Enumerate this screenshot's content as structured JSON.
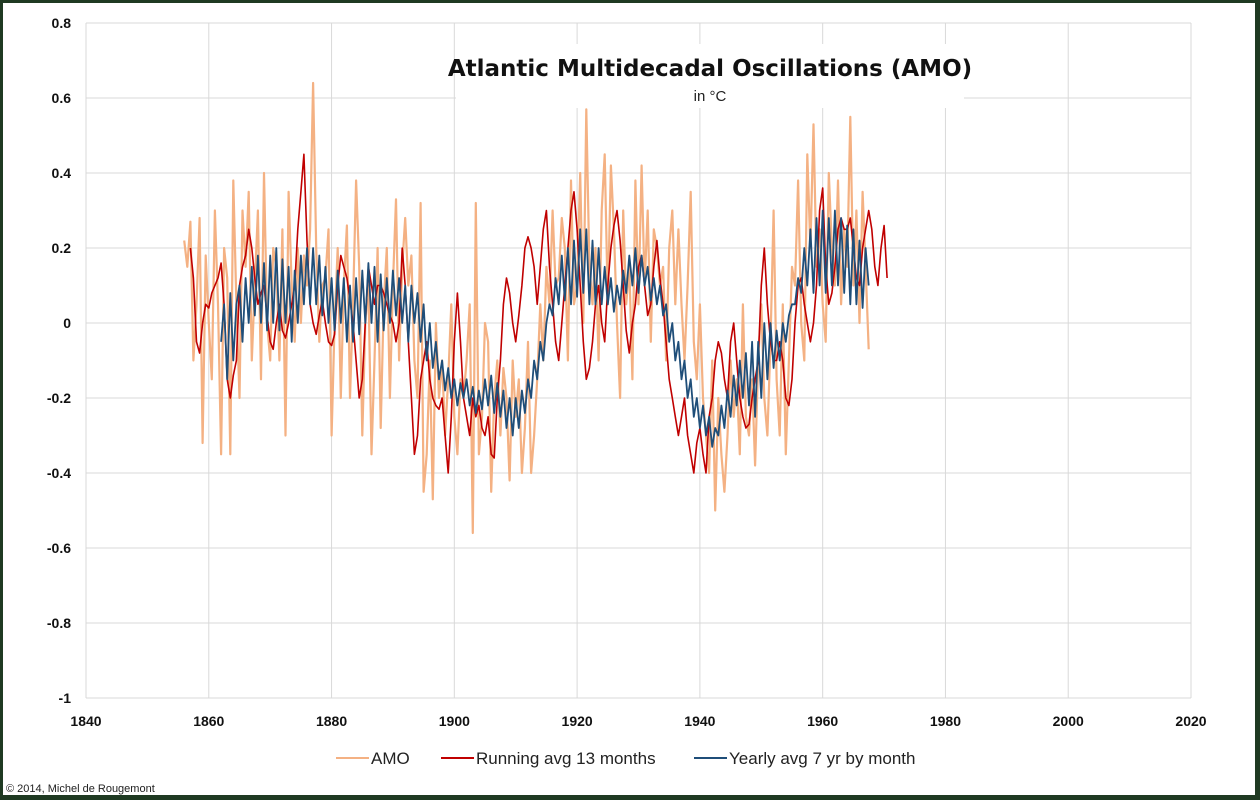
{
  "chart_data": {
    "type": "line",
    "title": "Atlantic Multidecadal Oscillations (AMO)",
    "subtitle": "in °C",
    "xlabel": "",
    "ylabel": "",
    "xlim": [
      1840,
      2020
    ],
    "ylim": [
      -1,
      0.8
    ],
    "x_ticks": [
      1840,
      1860,
      1880,
      1900,
      1920,
      1940,
      1960,
      1980,
      2000,
      2020
    ],
    "y_ticks": [
      0.8,
      0.6,
      0.4,
      0.2,
      0,
      -0.2,
      -0.4,
      -0.6,
      -0.8,
      -1
    ],
    "y_tick_labels": [
      "0.8",
      "0.6",
      "0.4",
      "0.2",
      "0",
      "-0.2",
      "-0.4",
      "-0.6",
      "-0.8",
      "-1"
    ],
    "grid": true,
    "legend_position": "bottom",
    "series": [
      {
        "name": "AMO",
        "color": "#f4b183",
        "x_start": 1856,
        "x_step": 0.5,
        "values": [
          0.22,
          0.15,
          0.27,
          -0.1,
          0.05,
          0.28,
          -0.32,
          0.18,
          0.0,
          -0.15,
          0.3,
          0.05,
          -0.35,
          0.2,
          0.12,
          -0.35,
          0.38,
          0.05,
          -0.2,
          0.3,
          0.15,
          0.35,
          -0.1,
          0.1,
          0.3,
          -0.15,
          0.4,
          0.0,
          -0.1,
          0.2,
          0.15,
          -0.1,
          0.25,
          -0.3,
          0.35,
          0.1,
          -0.05,
          0.2,
          0.0,
          0.18,
          0.1,
          0.25,
          0.64,
          0.2,
          -0.05,
          0.1,
          0.12,
          0.25,
          -0.3,
          0.0,
          0.2,
          -0.2,
          0.1,
          0.26,
          -0.2,
          0.05,
          0.38,
          0.15,
          -0.3,
          0.0,
          0.1,
          -0.35,
          -0.1,
          0.2,
          -0.28,
          0.05,
          0.2,
          -0.2,
          0.1,
          0.33,
          -0.1,
          0.15,
          0.28,
          0.1,
          0.18,
          -0.1,
          -0.2,
          0.32,
          -0.45,
          -0.35,
          -0.1,
          -0.47,
          0.0,
          -0.2,
          -0.1,
          -0.3,
          -0.15,
          0.05,
          -0.25,
          -0.35,
          -0.15,
          -0.2,
          -0.1,
          0.05,
          -0.56,
          0.32,
          -0.35,
          -0.25,
          0.0,
          -0.05,
          -0.45,
          -0.2,
          -0.1,
          -0.3,
          -0.12,
          -0.2,
          -0.42,
          -0.1,
          -0.25,
          -0.15,
          -0.4,
          -0.28,
          -0.05,
          -0.4,
          -0.3,
          -0.15,
          0.05,
          -0.1,
          0.15,
          0.05,
          0.3,
          0.1,
          0.12,
          0.28,
          0.2,
          -0.1,
          0.38,
          0.05,
          0.1,
          0.4,
          0.0,
          0.57,
          0.15,
          0.05,
          0.2,
          -0.1,
          0.3,
          0.45,
          0.05,
          0.42,
          0.25,
          0.0,
          -0.2,
          0.3,
          0.05,
          0.15,
          -0.15,
          0.38,
          0.05,
          0.42,
          0.1,
          0.3,
          -0.05,
          0.25,
          0.2,
          0.1,
          0.15,
          -0.1,
          0.2,
          0.3,
          0.05,
          0.25,
          0.05,
          -0.1,
          0.1,
          0.35,
          -0.05,
          -0.15,
          0.05,
          -0.2,
          -0.3,
          -0.4,
          -0.1,
          -0.5,
          -0.2,
          -0.35,
          -0.45,
          -0.3,
          -0.1,
          -0.25,
          -0.15,
          -0.35,
          0.05,
          -0.25,
          -0.3,
          -0.15,
          -0.38,
          -0.1,
          0.05,
          -0.2,
          -0.3,
          -0.05,
          0.3,
          -0.15,
          -0.3,
          0.05,
          -0.35,
          -0.1,
          0.15,
          0.1,
          0.38,
          0.0,
          -0.1,
          0.45,
          0.2,
          0.53,
          0.15,
          0.25,
          0.05,
          -0.05,
          0.4,
          0.2,
          0.1,
          0.38,
          0.05,
          0.25,
          0.15,
          0.55,
          0.1,
          0.3,
          0.0,
          0.35,
          0.15,
          -0.07
        ]
      },
      {
        "name": "Running avg 13 months",
        "color": "#c00000",
        "x_start": 1857,
        "x_step": 0.5,
        "values": [
          0.2,
          0.12,
          -0.05,
          -0.08,
          0.0,
          0.05,
          0.04,
          0.08,
          0.1,
          0.12,
          0.16,
          0.05,
          -0.15,
          -0.2,
          -0.14,
          -0.1,
          0.1,
          0.15,
          0.18,
          0.25,
          0.2,
          0.12,
          0.05,
          0.08,
          0.1,
          0.02,
          -0.05,
          -0.07,
          0.0,
          0.05,
          -0.02,
          -0.04,
          0.0,
          0.05,
          0.1,
          0.25,
          0.35,
          0.45,
          0.22,
          0.05,
          0.0,
          -0.03,
          0.02,
          0.06,
          0.0,
          -0.05,
          -0.06,
          -0.03,
          0.1,
          0.18,
          0.15,
          0.12,
          0.06,
          0.0,
          -0.1,
          -0.2,
          -0.15,
          0.0,
          0.15,
          0.1,
          0.05,
          0.1,
          0.1,
          0.08,
          0.05,
          0.02,
          0.0,
          -0.05,
          0.0,
          0.2,
          0.1,
          -0.05,
          -0.2,
          -0.35,
          -0.3,
          -0.15,
          -0.1,
          -0.05,
          -0.15,
          -0.2,
          -0.22,
          -0.23,
          -0.2,
          -0.3,
          -0.4,
          -0.25,
          -0.05,
          0.08,
          -0.05,
          -0.2,
          -0.25,
          -0.3,
          -0.2,
          -0.25,
          -0.22,
          -0.28,
          -0.3,
          -0.25,
          -0.35,
          -0.36,
          -0.2,
          -0.1,
          0.05,
          0.12,
          0.08,
          0.0,
          -0.05,
          0.02,
          0.1,
          0.2,
          0.23,
          0.2,
          0.15,
          0.05,
          0.15,
          0.25,
          0.3,
          0.15,
          0.05,
          -0.05,
          -0.1,
          0.0,
          0.1,
          0.2,
          0.3,
          0.35,
          0.25,
          0.1,
          -0.05,
          -0.15,
          -0.12,
          -0.05,
          0.05,
          0.1,
          0.0,
          -0.05,
          0.1,
          0.2,
          0.26,
          0.3,
          0.22,
          0.1,
          -0.02,
          -0.08,
          0.0,
          0.05,
          0.15,
          0.18,
          0.1,
          0.02,
          0.05,
          0.15,
          0.22,
          0.12,
          0.05,
          -0.05,
          -0.15,
          -0.2,
          -0.25,
          -0.3,
          -0.25,
          -0.2,
          -0.3,
          -0.35,
          -0.4,
          -0.32,
          -0.28,
          -0.35,
          -0.4,
          -0.25,
          -0.2,
          -0.1,
          -0.05,
          -0.08,
          -0.15,
          -0.2,
          -0.05,
          0.0,
          -0.1,
          -0.2,
          -0.25,
          -0.28,
          -0.27,
          -0.2,
          -0.15,
          -0.1,
          0.1,
          0.2,
          0.05,
          -0.05,
          -0.1,
          -0.1,
          -0.05,
          -0.1,
          -0.2,
          -0.22,
          -0.15,
          0.0,
          0.1,
          0.12,
          0.05,
          0.0,
          -0.05,
          0.0,
          0.1,
          0.3,
          0.36,
          0.15,
          0.05,
          0.08,
          0.15,
          0.25,
          0.28,
          0.25,
          0.25,
          0.28,
          0.2,
          0.12,
          0.1,
          0.2,
          0.25,
          0.3,
          0.25,
          0.15,
          0.1,
          0.2,
          0.26,
          0.12
        ]
      },
      {
        "name": "Yearly avg 7 yr by month",
        "color": "#1f4e79",
        "x_start": 1862,
        "x_step": 0.5,
        "values": [
          -0.05,
          0.05,
          -0.15,
          0.08,
          -0.1,
          0.05,
          0.1,
          -0.05,
          0.12,
          0.0,
          0.15,
          0.02,
          0.18,
          0.0,
          0.16,
          -0.02,
          0.18,
          0.0,
          0.2,
          -0.02,
          0.17,
          0.0,
          0.15,
          -0.05,
          0.14,
          0.0,
          0.18,
          0.05,
          0.2,
          0.05,
          0.2,
          0.05,
          0.18,
          0.02,
          0.15,
          0.0,
          0.12,
          -0.02,
          0.14,
          0.0,
          0.12,
          -0.05,
          0.1,
          -0.05,
          0.12,
          -0.03,
          0.14,
          0.0,
          0.16,
          0.0,
          0.15,
          -0.05,
          0.13,
          -0.02,
          0.12,
          0.0,
          0.14,
          0.02,
          0.12,
          0.0,
          0.1,
          -0.05,
          0.1,
          0.0,
          0.08,
          -0.05,
          0.05,
          -0.1,
          0.0,
          -0.12,
          -0.05,
          -0.15,
          -0.1,
          -0.18,
          -0.12,
          -0.2,
          -0.15,
          -0.22,
          -0.16,
          -0.2,
          -0.15,
          -0.22,
          -0.17,
          -0.24,
          -0.18,
          -0.23,
          -0.15,
          -0.22,
          -0.14,
          -0.24,
          -0.16,
          -0.25,
          -0.18,
          -0.28,
          -0.2,
          -0.3,
          -0.2,
          -0.28,
          -0.18,
          -0.24,
          -0.15,
          -0.2,
          -0.1,
          -0.15,
          -0.05,
          -0.1,
          0.0,
          0.05,
          0.02,
          0.12,
          0.05,
          0.18,
          0.06,
          0.2,
          0.05,
          0.22,
          0.07,
          0.25,
          0.08,
          0.25,
          0.05,
          0.22,
          0.05,
          0.2,
          0.05,
          0.15,
          0.05,
          0.12,
          0.03,
          0.1,
          0.05,
          0.14,
          0.08,
          0.18,
          0.1,
          0.2,
          0.08,
          0.18,
          0.1,
          0.15,
          0.06,
          0.12,
          0.05,
          0.1,
          0.02,
          0.05,
          -0.05,
          0.0,
          -0.1,
          -0.05,
          -0.15,
          -0.1,
          -0.2,
          -0.15,
          -0.25,
          -0.2,
          -0.28,
          -0.22,
          -0.3,
          -0.25,
          -0.33,
          -0.28,
          -0.3,
          -0.22,
          -0.28,
          -0.18,
          -0.25,
          -0.14,
          -0.22,
          -0.1,
          -0.2,
          -0.08,
          -0.22,
          -0.05,
          -0.25,
          -0.05,
          -0.2,
          0.0,
          -0.15,
          0.0,
          -0.12,
          -0.02,
          -0.1,
          0.0,
          -0.05,
          0.02,
          0.05,
          0.05,
          0.12,
          0.08,
          0.2,
          0.1,
          0.25,
          0.08,
          0.28,
          0.1,
          0.3,
          0.08,
          0.28,
          0.1,
          0.3,
          0.1,
          0.28,
          0.08,
          0.26,
          0.05,
          0.25,
          0.05,
          0.22,
          0.04,
          0.2,
          0.1
        ]
      }
    ]
  },
  "credit": "© 2014, Michel de Rougemont"
}
